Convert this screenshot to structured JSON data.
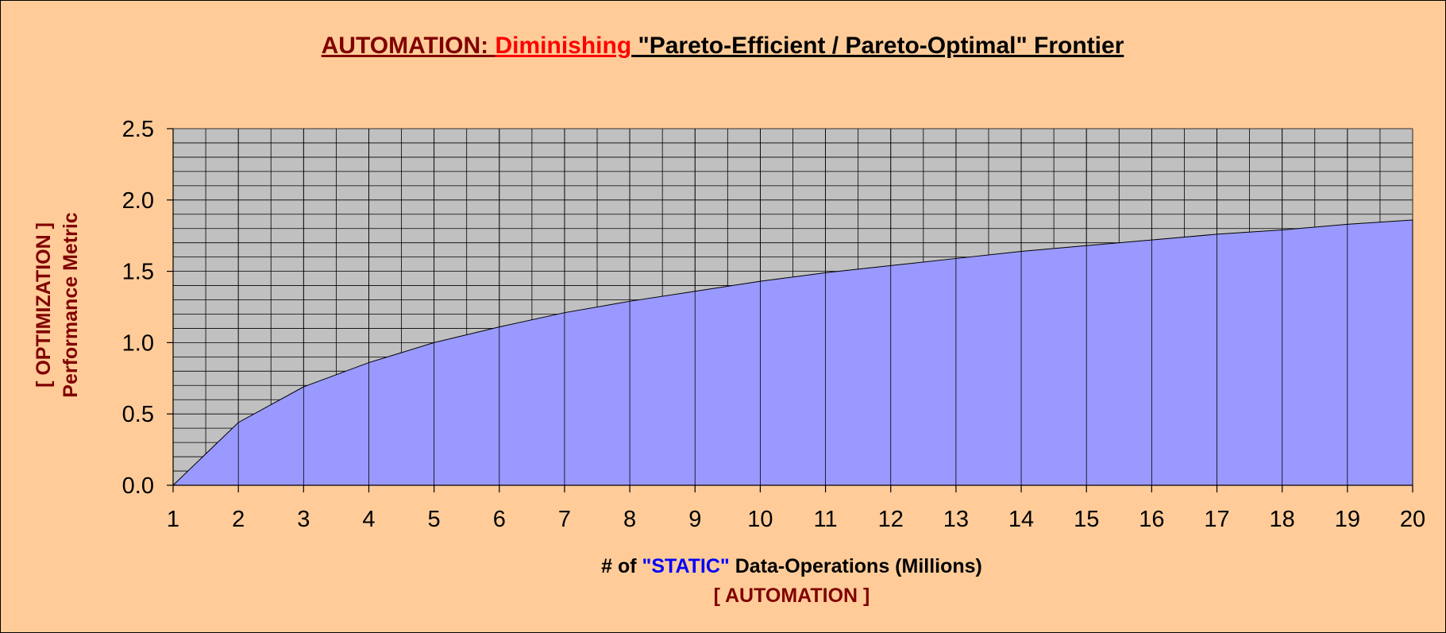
{
  "chart_data": {
    "type": "area",
    "title": {
      "part1": "AUTOMATION: ",
      "part2": "Diminishing",
      "part3": " \"Pareto-Efficient / Pareto-Optimal\" Frontier"
    },
    "xlabel": {
      "part1": "# of ",
      "part2": "\"STATIC\"",
      "part3": " Data-Operations (Millions)",
      "line2": "[ AUTOMATION ]"
    },
    "ylabel": {
      "line1": "[ OPTIMIZATION ]",
      "line2": "Performance Metric"
    },
    "x": [
      1,
      2,
      3,
      4,
      5,
      6,
      7,
      8,
      9,
      10,
      11,
      12,
      13,
      14,
      15,
      16,
      17,
      18,
      19,
      20
    ],
    "x_ticks": [
      "1",
      "2",
      "3",
      "4",
      "5",
      "6",
      "7",
      "8",
      "9",
      "10",
      "11",
      "12",
      "13",
      "14",
      "15",
      "16",
      "17",
      "18",
      "19",
      "20"
    ],
    "y_ticks": [
      "0.0",
      "0.5",
      "1.0",
      "1.5",
      "2.0",
      "2.5"
    ],
    "series": [
      {
        "values": [
          0.0,
          0.44,
          0.69,
          0.86,
          1.0,
          1.11,
          1.21,
          1.29,
          1.36,
          1.43,
          1.49,
          1.54,
          1.59,
          1.64,
          1.68,
          1.72,
          1.76,
          1.79,
          1.83,
          1.86
        ]
      }
    ],
    "xlim": [
      1,
      20
    ],
    "ylim": [
      0,
      2.5
    ],
    "grid": true,
    "colors": {
      "background": "#FFCC99",
      "plot_area": "#C0C0C0",
      "area_fill": "#9999FF",
      "title_dark": "#800000",
      "title_red": "#FF0000",
      "title_black": "#000000",
      "static_blue": "#0000FF",
      "axis_label_dark": "#800000"
    }
  }
}
